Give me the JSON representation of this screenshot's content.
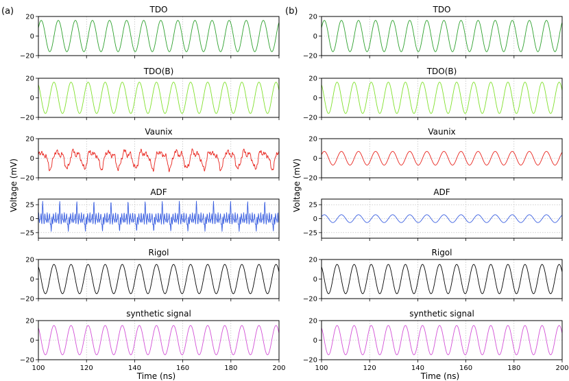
{
  "figure": {
    "panel_letters": [
      "(a)",
      "(b)"
    ],
    "ylabel": "Voltage (mV)",
    "xlabel": "Time (ns)"
  },
  "chart_data": [
    {
      "panel": "(a)",
      "type": "line",
      "xlabel": "Time (ns)",
      "ylabel": "Voltage (mV)",
      "xlim": [
        100,
        200
      ],
      "xticks": [
        100,
        120,
        140,
        160,
        180,
        200
      ],
      "grid": true,
      "subplots": [
        {
          "title": "TDO",
          "color": "#2ca02c",
          "ylim": [
            -20,
            20
          ],
          "yticks": [
            -20,
            0,
            20
          ],
          "waveform": "sine",
          "amplitude": 16,
          "period_ns": 7.1,
          "phase": 0.0
        },
        {
          "title": "TDO(B)",
          "color": "#7fe02a",
          "ylim": [
            -20,
            20
          ],
          "yticks": [
            -20,
            0,
            20
          ],
          "waveform": "sine",
          "amplitude": 16,
          "period_ns": 7.1,
          "phase": 1.6
        },
        {
          "title": "Vaunix",
          "color": "#e8231c",
          "ylim": [
            -20,
            20
          ],
          "yticks": [
            -20,
            0,
            20
          ],
          "waveform": "distorted",
          "amplitude": 12,
          "period_ns": 7.1,
          "phase": 0.0
        },
        {
          "title": "ADF",
          "color": "#3a5fe0",
          "ylim": [
            -35,
            35
          ],
          "yticks": [
            -25,
            0,
            25
          ],
          "waveform": "pulsed",
          "amplitude": 30,
          "period_ns": 3.55,
          "phase": 0.0
        },
        {
          "title": "Rigol",
          "color": "#000000",
          "ylim": [
            -20,
            20
          ],
          "yticks": [
            -20,
            0,
            20
          ],
          "waveform": "sine",
          "amplitude": 15,
          "period_ns": 7.1,
          "phase": 1.6
        },
        {
          "title": "synthetic signal",
          "color": "#d24fd6",
          "ylim": [
            -20,
            20
          ],
          "yticks": [
            -20,
            0,
            20
          ],
          "waveform": "sine",
          "amplitude": 15,
          "period_ns": 7.1,
          "phase": 1.6
        }
      ]
    },
    {
      "panel": "(b)",
      "type": "line",
      "xlabel": "Time (ns)",
      "ylabel": "Voltage (mV)",
      "xlim": [
        100,
        200
      ],
      "xticks": [
        100,
        120,
        140,
        160,
        180,
        200
      ],
      "grid": true,
      "subplots": [
        {
          "title": "TDO",
          "color": "#2ca02c",
          "ylim": [
            -20,
            20
          ],
          "yticks": [
            -20,
            0,
            20
          ],
          "waveform": "sine",
          "amplitude": 16,
          "period_ns": 7.1,
          "phase": 0.0
        },
        {
          "title": "TDO(B)",
          "color": "#7fe02a",
          "ylim": [
            -20,
            20
          ],
          "yticks": [
            -20,
            0,
            20
          ],
          "waveform": "sine",
          "amplitude": 16,
          "period_ns": 7.1,
          "phase": 1.6
        },
        {
          "title": "Vaunix",
          "color": "#e8231c",
          "ylim": [
            -20,
            20
          ],
          "yticks": [
            -20,
            0,
            20
          ],
          "waveform": "sine",
          "amplitude": 7,
          "period_ns": 7.1,
          "phase": 0.0
        },
        {
          "title": "ADF",
          "color": "#3a5fe0",
          "ylim": [
            -35,
            35
          ],
          "yticks": [
            -25,
            0,
            25
          ],
          "waveform": "sine",
          "amplitude": 7,
          "period_ns": 7.1,
          "phase": 0.0
        },
        {
          "title": "Rigol",
          "color": "#000000",
          "ylim": [
            -20,
            20
          ],
          "yticks": [
            -20,
            0,
            20
          ],
          "waveform": "sine",
          "amplitude": 15,
          "period_ns": 7.1,
          "phase": 1.6
        },
        {
          "title": "synthetic signal",
          "color": "#d24fd6",
          "ylim": [
            -20,
            20
          ],
          "yticks": [
            -20,
            0,
            20
          ],
          "waveform": "sine",
          "amplitude": 15,
          "period_ns": 7.1,
          "phase": 1.6
        }
      ]
    }
  ]
}
